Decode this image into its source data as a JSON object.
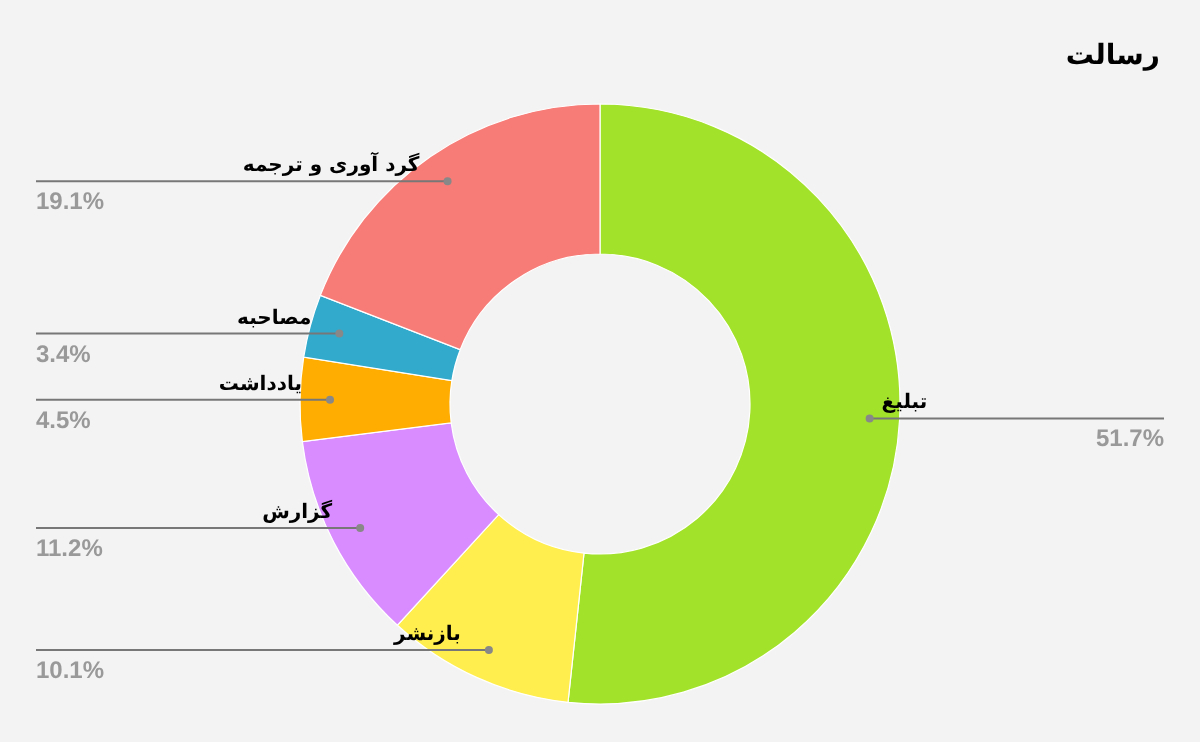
{
  "chart_data": {
    "type": "donut",
    "title": "رسالت",
    "categories": [
      "تبلیغ",
      "بازنشر",
      "گزارش",
      "یادداشت",
      "مصاحبه",
      "گرد آوری و ترجمه"
    ],
    "values": [
      51.7,
      10.1,
      11.2,
      4.5,
      3.4,
      19.1
    ],
    "colors": [
      "#a3e22a",
      "#ffee4d",
      "#d98cff",
      "#ffad00",
      "#32aacc",
      "#f77b76"
    ],
    "value_labels": [
      "51.7%",
      "10.1%",
      "11.2%",
      "4.5%",
      "3.4%",
      "19.1%"
    ]
  }
}
